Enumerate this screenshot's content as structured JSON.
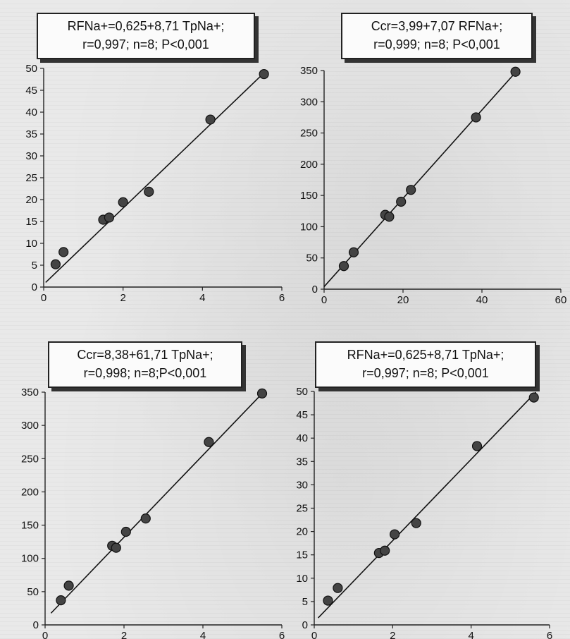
{
  "chart_data": [
    {
      "type": "scatter",
      "equation_lines": [
        "RFNa+=0,625+8,71 TpNa+;",
        "r=0,997; n=8; P<0,001"
      ],
      "xlim": [
        0,
        6
      ],
      "ylim": [
        0,
        50
      ],
      "xticks": [
        "0",
        "2",
        "4",
        "6"
      ],
      "yticks": [
        "0",
        "5",
        "10",
        "15",
        "20",
        "25",
        "30",
        "35",
        "40",
        "45",
        "50"
      ],
      "points": [
        [
          0.3,
          5.2
        ],
        [
          0.5,
          8.0
        ],
        [
          1.5,
          15.4
        ],
        [
          1.65,
          15.9
        ],
        [
          2.0,
          19.4
        ],
        [
          2.65,
          21.8
        ],
        [
          4.2,
          38.3
        ],
        [
          5.55,
          48.7
        ]
      ],
      "fit": {
        "intercept": 0.625,
        "slope": 8.71,
        "x_range": [
          0.05,
          5.6
        ]
      },
      "grid": false
    },
    {
      "type": "scatter",
      "equation_lines": [
        "Ccr=3,99+7,07 RFNa+;",
        "r=0,999; n=8; P<0,001"
      ],
      "xlim": [
        0,
        60
      ],
      "ylim": [
        0,
        350
      ],
      "xticks": [
        "0",
        "20",
        "40",
        "60"
      ],
      "yticks": [
        "0",
        "50",
        "100",
        "150",
        "200",
        "250",
        "300",
        "350"
      ],
      "points": [
        [
          5,
          37
        ],
        [
          7.5,
          59
        ],
        [
          15.5,
          119
        ],
        [
          16.5,
          116
        ],
        [
          19.5,
          140
        ],
        [
          22,
          159
        ],
        [
          38.5,
          275
        ],
        [
          48.5,
          348
        ]
      ],
      "fit": {
        "intercept": 3.99,
        "slope": 7.07,
        "x_range": [
          0,
          49
        ]
      },
      "grid": false
    },
    {
      "type": "scatter",
      "equation_lines": [
        "Ccr=8,38+61,71 TpNa+;",
        "r=0,998; n=8;P<0,001"
      ],
      "xlim": [
        0,
        6
      ],
      "ylim": [
        0,
        350
      ],
      "xticks": [
        "0",
        "2",
        "4",
        "6"
      ],
      "yticks": [
        "0",
        "50",
        "100",
        "150",
        "200",
        "250",
        "300",
        "350"
      ],
      "points": [
        [
          0.4,
          37
        ],
        [
          0.6,
          59
        ],
        [
          1.7,
          119
        ],
        [
          1.8,
          116
        ],
        [
          2.05,
          140
        ],
        [
          2.55,
          160
        ],
        [
          4.15,
          275
        ],
        [
          5.5,
          348
        ]
      ],
      "fit": {
        "intercept": 8.38,
        "slope": 61.71,
        "x_range": [
          0.15,
          5.5
        ]
      },
      "grid": false
    },
    {
      "type": "scatter",
      "equation_lines": [
        "RFNa+=0,625+8,71 TpNa+;",
        "r=0,997; n=8; P<0,001"
      ],
      "xlim": [
        0,
        6
      ],
      "ylim": [
        0,
        50
      ],
      "xticks": [
        "0",
        "2",
        "4",
        "6"
      ],
      "yticks": [
        "0",
        "5",
        "10",
        "15",
        "20",
        "25",
        "30",
        "35",
        "40",
        "45",
        "50"
      ],
      "points": [
        [
          0.35,
          5.2
        ],
        [
          0.6,
          7.9
        ],
        [
          1.65,
          15.4
        ],
        [
          1.8,
          15.9
        ],
        [
          2.05,
          19.4
        ],
        [
          2.6,
          21.8
        ],
        [
          4.15,
          38.3
        ],
        [
          5.6,
          48.7
        ]
      ],
      "fit": {
        "intercept": 0.625,
        "slope": 8.71,
        "x_range": [
          0.1,
          5.65
        ]
      },
      "grid": false
    }
  ]
}
